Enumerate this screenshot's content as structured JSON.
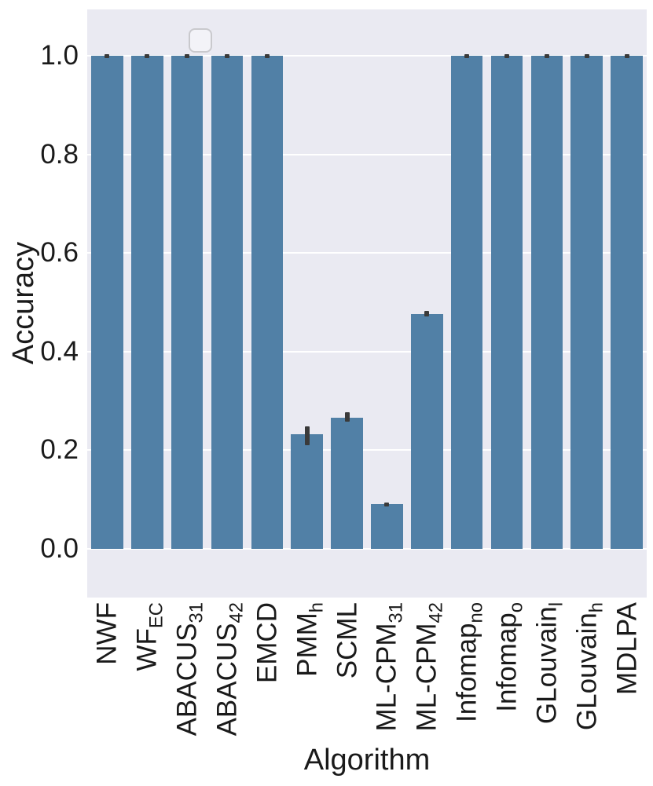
{
  "chart_data": {
    "type": "bar",
    "title": "",
    "xlabel": "Algorithm",
    "ylabel": "Accuracy",
    "categories": [
      "NWF",
      "WF_EC",
      "ABACUS_31",
      "ABACUS_42",
      "EMCD",
      "PMM_h",
      "SCML",
      "ML-CPM_31",
      "ML-CPM_42",
      "Infomap_no",
      "Infomap_o",
      "GLouvain_l",
      "GLouvain_h",
      "MDLPA"
    ],
    "tick_labels": [
      {
        "main": "NWF",
        "sub": ""
      },
      {
        "main": "WF",
        "sub": "EC"
      },
      {
        "main": "ABACUS",
        "sub": "31"
      },
      {
        "main": "ABACUS",
        "sub": "42"
      },
      {
        "main": "EMCD",
        "sub": ""
      },
      {
        "main": "PMM",
        "sub": "h"
      },
      {
        "main": "SCML",
        "sub": ""
      },
      {
        "main": "ML-CPM",
        "sub": "31"
      },
      {
        "main": "ML-CPM",
        "sub": "42"
      },
      {
        "main": "Infomap",
        "sub": "no"
      },
      {
        "main": "Infomap",
        "sub": "o"
      },
      {
        "main": "GLouvain",
        "sub": "l"
      },
      {
        "main": "GLouvain",
        "sub": "h"
      },
      {
        "main": "MDLPA",
        "sub": ""
      }
    ],
    "values": [
      1.0,
      1.0,
      1.0,
      1.0,
      1.0,
      0.232,
      0.266,
      0.091,
      0.476,
      1.0,
      1.0,
      1.0,
      1.0,
      1.0
    ],
    "error_low": [
      0.996,
      0.996,
      0.996,
      0.996,
      0.996,
      0.21,
      0.258,
      0.086,
      0.471,
      0.996,
      0.996,
      0.996,
      0.996,
      0.996
    ],
    "error_high": [
      1.003,
      1.003,
      1.003,
      1.003,
      1.003,
      0.248,
      0.277,
      0.094,
      0.482,
      1.003,
      1.003,
      1.003,
      1.003,
      1.003
    ],
    "yticks": [
      0.0,
      0.2,
      0.4,
      0.6,
      0.8,
      1.0
    ],
    "ylim": [
      -0.099,
      1.094
    ],
    "grid": true,
    "legend": {
      "visible": true,
      "entries": [],
      "position": "upper-left"
    },
    "bar_color": "#5180a6",
    "error_color": "#3a3a3a",
    "plot_bg_color": "#eaeaf2",
    "grid_color": "#ffffff",
    "text_color": "#1a1a1a"
  }
}
